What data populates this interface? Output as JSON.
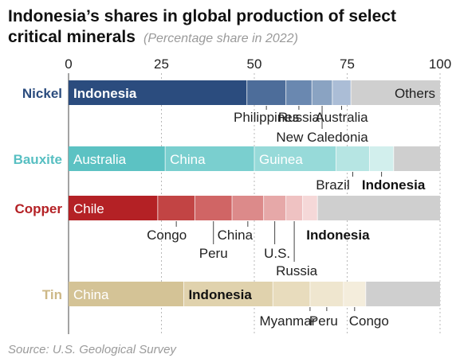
{
  "title_line1": "Indonesia’s shares in global production of select",
  "title_line2": "critical minerals",
  "subtitle": "(Percentage share in 2022)",
  "source": "Source: U.S. Geological Survey",
  "chart_data": {
    "type": "bar",
    "orientation": "horizontal",
    "stacked": true,
    "x_ticks": [
      0,
      25,
      50,
      75,
      100
    ],
    "xlim": [
      0,
      100
    ],
    "grid": true,
    "categories": [
      "Nickel",
      "Bauxite",
      "Copper",
      "Tin"
    ],
    "rows": [
      {
        "name": "Nickel",
        "color": "#2b4c7e",
        "segments": [
          {
            "label": "Indonesia",
            "value": 48,
            "color": "#2b4c7e",
            "label_inside": true,
            "bold": true,
            "text_color": "#ffffff"
          },
          {
            "label": "Philippines",
            "value": 10.5,
            "color": "#4d6d9a"
          },
          {
            "label": "Russia",
            "value": 7,
            "color": "#6a88b0"
          },
          {
            "label": "New Caledonia",
            "value": 5.5,
            "color": "#8aa3c2"
          },
          {
            "label": "Australia",
            "value": 5,
            "color": "#abbdd6"
          },
          {
            "label": "Others",
            "value": 24,
            "color": "#cfcfcf",
            "label_inside": true,
            "label_align": "end",
            "text_color": "#222222"
          }
        ]
      },
      {
        "name": "Bauxite",
        "color": "#57bfc2",
        "segments": [
          {
            "label": "Australia",
            "value": 26,
            "color": "#5cc2c3",
            "label_inside": true,
            "text_color": "#ffffff"
          },
          {
            "label": "China",
            "value": 24,
            "color": "#7acfcf",
            "label_inside": true,
            "text_color": "#ffffff"
          },
          {
            "label": "Guinea",
            "value": 22,
            "color": "#97dad9",
            "label_inside": true,
            "text_color": "#ffffff"
          },
          {
            "label": "Brazil",
            "value": 9,
            "color": "#b6e5e3"
          },
          {
            "label": "Indonesia",
            "value": 6.5,
            "color": "#d2efed",
            "bold": true
          },
          {
            "label": "Others",
            "value": 12.5,
            "color": "#cfcfcf"
          }
        ]
      },
      {
        "name": "Copper",
        "color": "#b42125",
        "segments": [
          {
            "label": "Chile",
            "value": 24,
            "color": "#b42125",
            "label_inside": true,
            "text_color": "#ffffff"
          },
          {
            "label": "Congo",
            "value": 10,
            "color": "#c24444"
          },
          {
            "label": "Peru",
            "value": 10,
            "color": "#d06565"
          },
          {
            "label": "China",
            "value": 8.5,
            "color": "#dc8a8a"
          },
          {
            "label": "U.S.",
            "value": 6,
            "color": "#e6a8a8"
          },
          {
            "label": "Russia",
            "value": 4.5,
            "color": "#efc2c2"
          },
          {
            "label": "Indonesia",
            "value": 4,
            "color": "#f5d8d8",
            "bold": true
          },
          {
            "label": "Others",
            "value": 33,
            "color": "#cfcfcf"
          }
        ]
      },
      {
        "name": "Tin",
        "color": "#cdb887",
        "segments": [
          {
            "label": "China",
            "value": 31,
            "color": "#d4c396",
            "label_inside": true,
            "text_color": "#ffffff"
          },
          {
            "label": "Indonesia",
            "value": 24,
            "color": "#e0d2ad",
            "label_inside": true,
            "bold": true,
            "text_color": "#111111"
          },
          {
            "label": "Myanmar",
            "value": 10,
            "color": "#e8dcbd"
          },
          {
            "label": "Peru",
            "value": 9,
            "color": "#efe6cf"
          },
          {
            "label": "Congo",
            "value": 6,
            "color": "#f4eddc"
          },
          {
            "label": "Others",
            "value": 20,
            "color": "#cfcfcf"
          }
        ]
      }
    ]
  }
}
